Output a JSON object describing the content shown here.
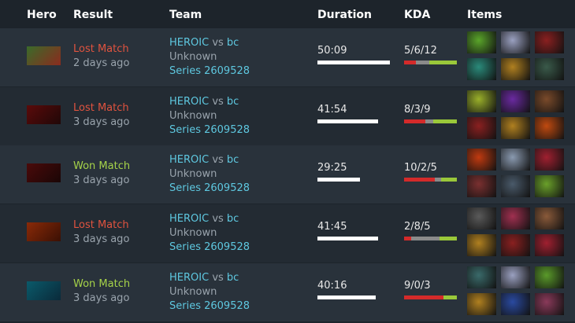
{
  "header": {
    "columns": [
      "Hero",
      "Result",
      "Team",
      "Duration",
      "KDA",
      "Items"
    ]
  },
  "rows": [
    {
      "result": "Lost Match",
      "result_color": "#e0533f",
      "time": "2 days ago",
      "team_home": "HEROIC",
      "vs": "vs",
      "team_away": "bc",
      "league": "Unknown",
      "series": "Series 2609528",
      "duration": "50:09",
      "kda": "5/6/12"
    },
    {
      "result": "Lost Match",
      "result_color": "#e0533f",
      "time": "3 days ago",
      "team_home": "HEROIC",
      "vs": "vs",
      "team_away": "bc",
      "league": "Unknown",
      "series": "Series 2609528",
      "duration": "41:54",
      "kda": "8/3/9"
    },
    {
      "result": "Won Match",
      "result_color": "#a6d349",
      "time": "3 days ago",
      "team_home": "HEROIC",
      "vs": "vs",
      "team_away": "bc",
      "league": "Unknown",
      "series": "Series 2609528",
      "duration": "29:25",
      "kda": "10/2/5"
    },
    {
      "result": "Lost Match",
      "result_color": "#e0533f",
      "time": "3 days ago",
      "team_home": "HEROIC",
      "vs": "vs",
      "team_away": "bc",
      "league": "Unknown",
      "series": "Series 2609528",
      "duration": "41:45",
      "kda": "2/8/5"
    },
    {
      "result": "Won Match",
      "result_color": "#a6d349",
      "time": "3 days ago",
      "team_home": "HEROIC",
      "vs": "vs",
      "team_away": "bc",
      "league": "Unknown",
      "series": "Series 2609528",
      "duration": "40:16",
      "kda": "9/0/3"
    }
  ]
}
